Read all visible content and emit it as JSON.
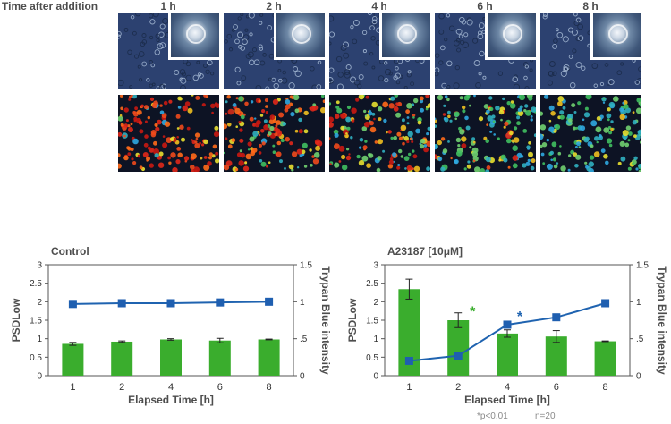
{
  "header": {
    "label": "Time after addition",
    "times": [
      "1 h",
      "2 h",
      "4 h",
      "6 h",
      "8 h"
    ]
  },
  "colors": {
    "bar_green": "#3aad2d",
    "line_blue": "#1f63b0",
    "marker_blue": "#1f5fb0",
    "significance_green": "#3aad2d",
    "significance_blue": "#1f63b0",
    "axis": "#555555",
    "phase_contrast_bg": "#2c4170",
    "fluorescence_bg": "#0d1324"
  },
  "chart_data": [
    {
      "type": "bar",
      "title": "Control",
      "categories": [
        "1",
        "2",
        "4",
        "6",
        "8"
      ],
      "xlabel": "Elapsed Time [h]",
      "ylabel": "PSDLow",
      "ylabel_right": "Trypan Blue intensity",
      "ylim": [
        0,
        3
      ],
      "yticks": [
        "0",
        "0.5",
        "1",
        "1.5",
        "2",
        "2.5",
        "3"
      ],
      "ylim_right": [
        0,
        1.5
      ],
      "yticks_right": [
        "0",
        ".5",
        "1",
        "1.5"
      ],
      "series": [
        {
          "name": "PSDLow",
          "kind": "bar",
          "axis": "left",
          "values": [
            0.86,
            0.92,
            0.98,
            0.95,
            0.98
          ],
          "error": [
            0.04,
            0.02,
            0.02,
            0.06,
            0.01
          ]
        },
        {
          "name": "Trypan Blue intensity",
          "kind": "line",
          "axis": "right",
          "values": [
            0.97,
            0.98,
            0.98,
            0.99,
            1.0
          ]
        }
      ],
      "annotations": []
    },
    {
      "type": "bar",
      "title": "A23187 [10μM]",
      "categories": [
        "1",
        "2",
        "4",
        "6",
        "8"
      ],
      "xlabel": "Elapsed Time [h]",
      "ylabel": "PSDLow",
      "ylabel_right": "Trypan Blue intensity",
      "ylim": [
        0,
        3
      ],
      "yticks": [
        "0",
        "0.5",
        "1",
        "1.5",
        "2",
        "2.5",
        "3"
      ],
      "ylim_right": [
        0,
        1.5
      ],
      "yticks_right": [
        "0",
        ".5",
        "1",
        "1.5"
      ],
      "series": [
        {
          "name": "PSDLow",
          "kind": "bar",
          "axis": "left",
          "values": [
            2.34,
            1.5,
            1.14,
            1.06,
            0.93
          ],
          "error": [
            0.27,
            0.2,
            0.1,
            0.16,
            0.01
          ]
        },
        {
          "name": "Trypan Blue intensity",
          "kind": "line",
          "axis": "right",
          "values": [
            0.2,
            0.27,
            0.69,
            0.79,
            0.98
          ]
        }
      ],
      "annotations": [
        {
          "text": "*",
          "category": 1,
          "series": "PSDLow"
        },
        {
          "text": "*",
          "category": 2,
          "series": "Trypan Blue intensity"
        }
      ]
    }
  ],
  "footnote": {
    "pvalue": "*p<0.01",
    "n": "n=20"
  }
}
